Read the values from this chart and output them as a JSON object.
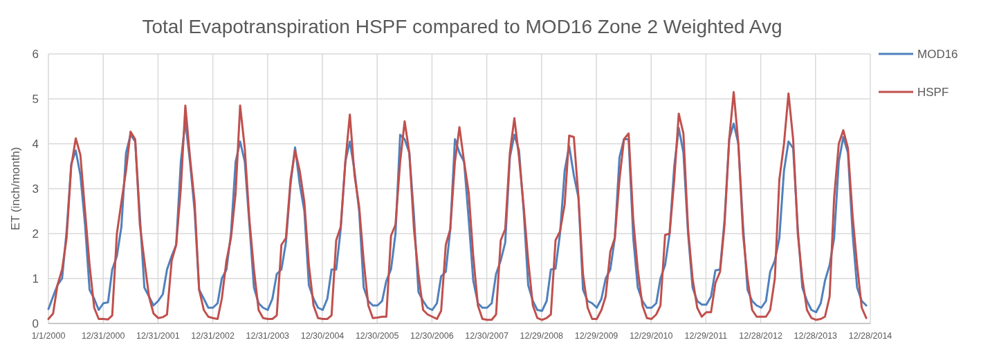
{
  "chart_data": {
    "type": "line",
    "title": "Total Evapotranspiration HSPF compared to MOD16 Zone 2 Weighted Avg",
    "ylabel": "ET (inch/month)",
    "x": [
      "2000-01",
      "2000-02",
      "2000-03",
      "2000-04",
      "2000-05",
      "2000-06",
      "2000-07",
      "2000-08",
      "2000-09",
      "2000-10",
      "2000-11",
      "2000-12",
      "2001-01",
      "2001-02",
      "2001-03",
      "2001-04",
      "2001-05",
      "2001-06",
      "2001-07",
      "2001-08",
      "2001-09",
      "2001-10",
      "2001-11",
      "2001-12",
      "2002-01",
      "2002-02",
      "2002-03",
      "2002-04",
      "2002-05",
      "2002-06",
      "2002-07",
      "2002-08",
      "2002-09",
      "2002-10",
      "2002-11",
      "2002-12",
      "2003-01",
      "2003-02",
      "2003-03",
      "2003-04",
      "2003-05",
      "2003-06",
      "2003-07",
      "2003-08",
      "2003-09",
      "2003-10",
      "2003-11",
      "2003-12",
      "2004-01",
      "2004-02",
      "2004-03",
      "2004-04",
      "2004-05",
      "2004-06",
      "2004-07",
      "2004-08",
      "2004-09",
      "2004-10",
      "2004-11",
      "2004-12",
      "2005-01",
      "2005-02",
      "2005-03",
      "2005-04",
      "2005-05",
      "2005-06",
      "2005-07",
      "2005-08",
      "2005-09",
      "2005-10",
      "2005-11",
      "2005-12",
      "2006-01",
      "2006-02",
      "2006-03",
      "2006-04",
      "2006-05",
      "2006-06",
      "2006-07",
      "2006-08",
      "2006-09",
      "2006-10",
      "2006-11",
      "2006-12",
      "2007-01",
      "2007-02",
      "2007-03",
      "2007-04",
      "2007-05",
      "2007-06",
      "2007-07",
      "2007-08",
      "2007-09",
      "2007-10",
      "2007-11",
      "2007-12",
      "2008-01",
      "2008-02",
      "2008-03",
      "2008-04",
      "2008-05",
      "2008-06",
      "2008-07",
      "2008-08",
      "2008-09",
      "2008-10",
      "2008-11",
      "2008-12",
      "2009-01",
      "2009-02",
      "2009-03",
      "2009-04",
      "2009-05",
      "2009-06",
      "2009-07",
      "2009-08",
      "2009-09",
      "2009-10",
      "2009-11",
      "2009-12",
      "2010-01",
      "2010-02",
      "2010-03",
      "2010-04",
      "2010-05",
      "2010-06",
      "2010-07",
      "2010-08",
      "2010-09",
      "2010-10",
      "2010-11",
      "2010-12",
      "2011-01",
      "2011-02",
      "2011-03",
      "2011-04",
      "2011-05",
      "2011-06",
      "2011-07",
      "2011-08",
      "2011-09",
      "2011-10",
      "2011-11",
      "2011-12",
      "2012-01",
      "2012-02",
      "2012-03",
      "2012-04",
      "2012-05",
      "2012-06",
      "2012-07",
      "2012-08",
      "2012-09",
      "2012-10",
      "2012-11",
      "2012-12",
      "2013-01",
      "2013-02",
      "2013-03",
      "2013-04",
      "2013-05",
      "2013-06",
      "2013-07",
      "2013-08",
      "2013-09",
      "2013-10",
      "2013-11",
      "2013-12",
      "2014-01",
      "2014-02",
      "2014-03",
      "2014-04",
      "2014-05",
      "2014-06",
      "2014-07",
      "2014-08",
      "2014-09",
      "2014-10",
      "2014-11",
      "2014-12"
    ],
    "series": [
      {
        "name": "MOD16",
        "color": "#4f81bd",
        "values": [
          0.32,
          0.6,
          0.85,
          1.0,
          2.05,
          3.55,
          3.85,
          3.3,
          2.2,
          0.75,
          0.55,
          0.3,
          0.45,
          0.47,
          1.2,
          1.5,
          2.15,
          3.8,
          4.2,
          4.05,
          2.4,
          0.8,
          0.6,
          0.4,
          0.5,
          0.65,
          1.2,
          1.5,
          1.75,
          3.6,
          4.5,
          3.6,
          2.5,
          0.75,
          0.55,
          0.35,
          0.35,
          0.45,
          1.0,
          1.2,
          2.0,
          3.6,
          4.05,
          3.6,
          2.2,
          0.8,
          0.45,
          0.35,
          0.3,
          0.55,
          1.1,
          1.2,
          1.8,
          3.1,
          3.92,
          3.1,
          2.5,
          0.85,
          0.55,
          0.35,
          0.3,
          0.55,
          1.2,
          1.2,
          2.1,
          3.6,
          4.05,
          3.4,
          2.5,
          0.8,
          0.5,
          0.4,
          0.4,
          0.5,
          0.95,
          1.2,
          2.0,
          4.2,
          4.1,
          3.8,
          2.4,
          0.7,
          0.5,
          0.35,
          0.3,
          0.45,
          1.05,
          1.15,
          2.1,
          4.1,
          3.8,
          3.6,
          2.3,
          0.95,
          0.45,
          0.35,
          0.35,
          0.45,
          1.1,
          1.4,
          1.8,
          3.7,
          4.2,
          3.85,
          2.5,
          0.85,
          0.5,
          0.3,
          0.28,
          0.5,
          1.2,
          1.22,
          2.0,
          3.4,
          3.95,
          3.3,
          2.8,
          0.75,
          0.5,
          0.45,
          0.35,
          0.55,
          1.0,
          1.2,
          1.9,
          3.7,
          4.1,
          4.1,
          1.9,
          0.8,
          0.5,
          0.35,
          0.35,
          0.45,
          1.0,
          1.3,
          2.0,
          3.5,
          4.35,
          3.8,
          2.0,
          0.8,
          0.5,
          0.42,
          0.42,
          0.6,
          1.18,
          1.2,
          2.3,
          4.1,
          4.45,
          4.0,
          2.2,
          0.75,
          0.5,
          0.4,
          0.35,
          0.5,
          1.15,
          1.4,
          1.9,
          3.4,
          4.05,
          3.9,
          2.1,
          0.8,
          0.5,
          0.3,
          0.25,
          0.45,
          0.95,
          1.3,
          1.9,
          3.6,
          4.15,
          3.8,
          2.0,
          0.8,
          0.5,
          0.4
        ]
      },
      {
        "name": "HSPF",
        "color": "#c0504d",
        "values": [
          0.1,
          0.22,
          0.85,
          1.2,
          1.9,
          3.5,
          4.12,
          3.75,
          2.5,
          1.3,
          0.35,
          0.1,
          0.1,
          0.09,
          0.18,
          2.0,
          2.7,
          3.4,
          4.27,
          4.1,
          2.2,
          1.4,
          0.6,
          0.22,
          0.12,
          0.14,
          0.2,
          1.4,
          1.75,
          3.0,
          4.85,
          3.7,
          2.7,
          0.75,
          0.3,
          0.15,
          0.12,
          0.1,
          0.55,
          1.4,
          1.9,
          2.9,
          4.85,
          3.9,
          2.3,
          1.2,
          0.3,
          0.12,
          0.1,
          0.1,
          0.18,
          1.75,
          1.9,
          3.2,
          3.85,
          3.4,
          2.7,
          1.3,
          0.4,
          0.12,
          0.1,
          0.1,
          0.18,
          1.85,
          2.15,
          3.6,
          4.65,
          3.3,
          2.6,
          1.4,
          0.4,
          0.12,
          0.13,
          0.15,
          0.15,
          1.95,
          2.2,
          3.6,
          4.5,
          3.8,
          2.1,
          1.1,
          0.3,
          0.2,
          0.15,
          0.1,
          0.28,
          1.75,
          2.1,
          3.6,
          4.37,
          3.6,
          2.9,
          1.5,
          0.4,
          0.1,
          0.08,
          0.08,
          0.2,
          1.85,
          2.1,
          3.8,
          4.57,
          3.7,
          2.6,
          1.4,
          0.4,
          0.12,
          0.08,
          0.12,
          0.2,
          1.85,
          2.05,
          2.65,
          4.18,
          4.15,
          2.8,
          1.1,
          0.35,
          0.1,
          0.1,
          0.3,
          0.6,
          1.6,
          1.9,
          3.2,
          4.1,
          4.23,
          2.3,
          1.2,
          0.4,
          0.12,
          0.1,
          0.2,
          0.4,
          1.97,
          2.0,
          3.2,
          4.67,
          4.23,
          2.1,
          1.0,
          0.35,
          0.15,
          0.25,
          0.25,
          0.9,
          1.15,
          2.2,
          4.1,
          5.15,
          4.0,
          2.0,
          1.0,
          0.3,
          0.15,
          0.15,
          0.15,
          0.3,
          1.0,
          3.2,
          4.0,
          5.12,
          4.1,
          2.0,
          1.0,
          0.3,
          0.12,
          0.08,
          0.1,
          0.15,
          0.6,
          2.8,
          4.0,
          4.3,
          3.9,
          2.4,
          1.3,
          0.35,
          0.12
        ]
      }
    ],
    "xlim": [
      "2000-01-01",
      "2014-12-28"
    ],
    "xticks": [
      {
        "value": "2000-01-01",
        "label": "1/1/2000"
      },
      {
        "value": "2000-12-31",
        "label": "12/31/2000"
      },
      {
        "value": "2001-12-31",
        "label": "12/31/2001"
      },
      {
        "value": "2002-12-31",
        "label": "12/31/2002"
      },
      {
        "value": "2003-12-31",
        "label": "12/31/2003"
      },
      {
        "value": "2004-12-30",
        "label": "12/30/2004"
      },
      {
        "value": "2005-12-30",
        "label": "12/30/2005"
      },
      {
        "value": "2006-12-30",
        "label": "12/30/2006"
      },
      {
        "value": "2007-12-30",
        "label": "12/30/2007"
      },
      {
        "value": "2008-12-29",
        "label": "12/29/2008"
      },
      {
        "value": "2009-12-29",
        "label": "12/29/2009"
      },
      {
        "value": "2010-12-29",
        "label": "12/29/2010"
      },
      {
        "value": "2011-12-29",
        "label": "12/29/2011"
      },
      {
        "value": "2012-12-28",
        "label": "12/28/2012"
      },
      {
        "value": "2013-12-28",
        "label": "12/28/2013"
      },
      {
        "value": "2014-12-28",
        "label": "12/28/2014"
      }
    ],
    "ylim": [
      0,
      6
    ],
    "yticks": [
      0,
      1,
      2,
      3,
      4,
      5,
      6
    ],
    "grid": true,
    "legend": "top right",
    "marker": "none",
    "line_style": "solid"
  }
}
